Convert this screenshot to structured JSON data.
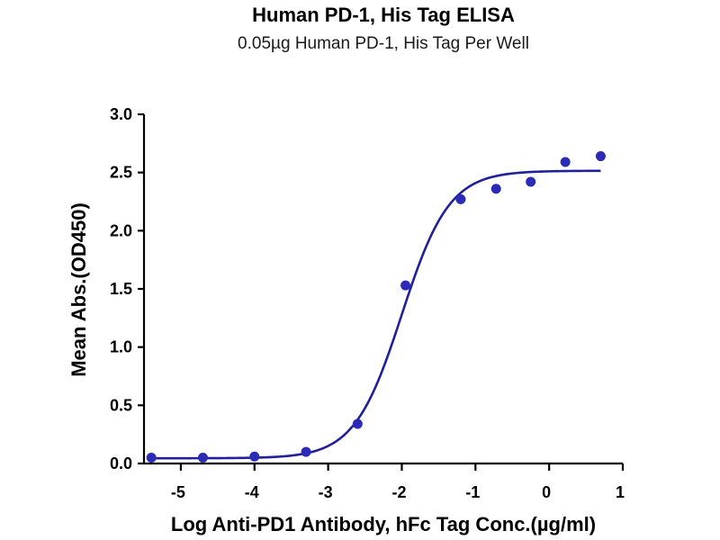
{
  "chart_data": {
    "type": "scatter",
    "title": "Human PD-1, His Tag ELISA",
    "subtitle": "0.05µg Human PD-1, His Tag Per Well",
    "xlabel": "Log Anti-PD1 Antibody, hFc Tag Conc.(µg/ml)",
    "ylabel": "Mean Abs.(OD450)",
    "xlim": [
      -5.5,
      1.0
    ],
    "ylim": [
      0.0,
      3.0
    ],
    "xticks": [
      -5,
      -4,
      -3,
      -2,
      -1,
      0,
      1
    ],
    "xtick_labels": [
      "-5",
      "-4",
      "-3",
      "-2",
      "-1",
      "0",
      "1"
    ],
    "yticks": [
      0.0,
      0.5,
      1.0,
      1.5,
      2.0,
      2.5,
      3.0
    ],
    "ytick_labels": [
      "0.0",
      "0.5",
      "1.0",
      "1.5",
      "2.0",
      "2.5",
      "3.0"
    ],
    "grid": false,
    "legend": "none",
    "series": [
      {
        "type": "scatter",
        "color": "#2b2bb8",
        "x": [
          -5.4,
          -4.7,
          -4.0,
          -3.3,
          -2.6,
          -1.95,
          -1.2,
          -0.72,
          -0.25,
          0.22,
          0.7
        ],
        "y": [
          0.05,
          0.05,
          0.06,
          0.1,
          0.34,
          1.53,
          2.27,
          2.36,
          2.42,
          2.59,
          2.64
        ]
      },
      {
        "type": "line",
        "color": "#20209a",
        "fit": "4PL",
        "bottom": 0.045,
        "top": 2.515,
        "logEC50": -2.0,
        "hill": 1.35,
        "x_range": [
          -5.4,
          0.7
        ]
      }
    ]
  }
}
